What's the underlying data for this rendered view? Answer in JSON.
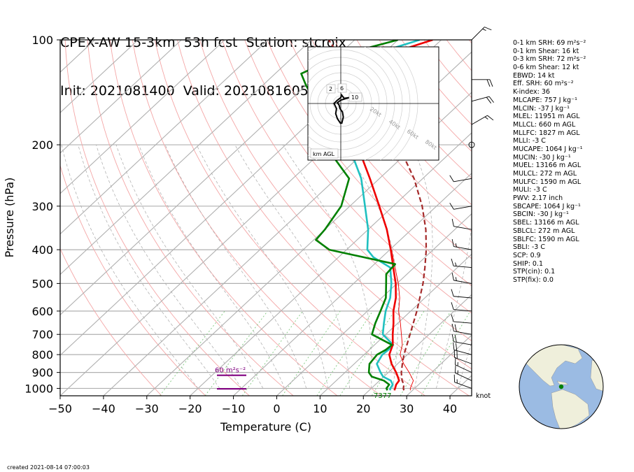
{
  "title": {
    "line1": "CPEX-AW 15-3km  53h fcst  Station: stcroix",
    "line2": "Init: 2021081400  Valid: 202108160500 UTC"
  },
  "stats": [
    "0-1 km SRH: 69 m²s⁻²",
    "0-1 km Shear: 16 kt",
    "0-3 km SRH: 72 m²s⁻²",
    "0-6 km Shear: 12 kt",
    "EBWD: 14 kt",
    "Eff. SRH: 60 m²s⁻²",
    "K-index: 36",
    "MLCAPE: 757 J kg⁻¹",
    "MLCIN: -37 J kg⁻¹",
    "MLEL: 11951 m AGL",
    "MLLCL: 660 m AGL",
    "MLLFC: 1827 m AGL",
    "MLLI: -3 C",
    "MUCAPE: 1064 J kg⁻¹",
    "MUCIN: -30 J kg⁻¹",
    "MUEL: 13166 m AGL",
    "MULCL: 272 m AGL",
    "MULFC: 1590 m AGL",
    "MULI: -3 C",
    "PWV: 2.17 inch",
    "SBCAPE: 1064 J kg⁻¹",
    "SBCIN: -30 J kg⁻¹",
    "SBEL: 13166 m AGL",
    "SBLCL: 272 m AGL",
    "SBLFC: 1590 m AGL",
    "SBLI: -3 C",
    "SCP: 0.9",
    "SHIP: 0.1",
    "STP(cin): 0.1",
    "STP(fix): 0.0"
  ],
  "created": "created 2021-08-14 07:00:03",
  "chart_data": {
    "type": "line",
    "title": "CPEX-AW 15-3km  53h fcst  Station: stcroix",
    "subtitle": "Init: 2021081400  Valid: 202108160500 UTC",
    "xlabel": "Temperature (C)",
    "ylabel": "Pressure (hPa)",
    "xlim": [
      -50,
      45
    ],
    "ylim": [
      1050,
      100
    ],
    "y_scale": "log",
    "skew": true,
    "xticks": [
      -50,
      -40,
      -30,
      -20,
      -10,
      0,
      10,
      20,
      30,
      40
    ],
    "yticks": [
      100,
      200,
      300,
      400,
      500,
      600,
      700,
      800,
      900,
      1000
    ],
    "grid": true,
    "series": [
      {
        "key": "temperature",
        "color": "#ee0000",
        "points": [
          [
            1013,
            25.8
          ],
          [
            1000,
            25.5
          ],
          [
            975,
            24.8
          ],
          [
            950,
            24.5
          ],
          [
            925,
            23.2
          ],
          [
            900,
            21.8
          ],
          [
            850,
            18.6
          ],
          [
            800,
            15.8
          ],
          [
            775,
            15.0
          ],
          [
            750,
            14.2
          ],
          [
            700,
            11.6
          ],
          [
            650,
            9.0
          ],
          [
            600,
            6.0
          ],
          [
            550,
            3.3
          ],
          [
            500,
            -0.3
          ],
          [
            450,
            -4.8
          ],
          [
            400,
            -9.8
          ],
          [
            350,
            -15.7
          ],
          [
            300,
            -23.2
          ],
          [
            250,
            -32.2
          ],
          [
            200,
            -43.5
          ],
          [
            175,
            -50.5
          ],
          [
            150,
            -58.5
          ],
          [
            135,
            -64.5
          ],
          [
            125,
            -66.5
          ],
          [
            115,
            -62.0
          ],
          [
            100,
            -52.0
          ]
        ]
      },
      {
        "key": "virtual-temperature",
        "color": "#ee0000",
        "points": [
          [
            1013,
            29.5
          ],
          [
            1000,
            29.0
          ],
          [
            950,
            27.8
          ],
          [
            900,
            24.8
          ],
          [
            850,
            21.4
          ],
          [
            800,
            18.3
          ],
          [
            750,
            16.4
          ],
          [
            700,
            13.6
          ],
          [
            650,
            10.6
          ],
          [
            600,
            7.2
          ],
          [
            550,
            4.2
          ],
          [
            500,
            0.3
          ],
          [
            450,
            -4.4
          ],
          [
            400,
            -9.6
          ]
        ]
      },
      {
        "key": "dewpoint",
        "color": "#008000",
        "points": [
          [
            1013,
            24.2
          ],
          [
            1000,
            23.5
          ],
          [
            975,
            23.2
          ],
          [
            950,
            21.0
          ],
          [
            925,
            17.2
          ],
          [
            900,
            15.5
          ],
          [
            850,
            13.5
          ],
          [
            800,
            13.0
          ],
          [
            775,
            13.8
          ],
          [
            750,
            14.0
          ],
          [
            700,
            6.8
          ],
          [
            650,
            4.8
          ],
          [
            600,
            3.0
          ],
          [
            550,
            1.0
          ],
          [
            500,
            -2.5
          ],
          [
            470,
            -4.8
          ],
          [
            440,
            -5.2
          ],
          [
            400,
            -24.0
          ],
          [
            375,
            -29.5
          ],
          [
            350,
            -30.0
          ],
          [
            300,
            -32.0
          ],
          [
            250,
            -37.0
          ],
          [
            200,
            -51.0
          ],
          [
            175,
            -58.0
          ],
          [
            150,
            -64.0
          ],
          [
            135,
            -70.0
          ],
          [
            125,
            -74.0
          ],
          [
            110,
            -69.0
          ],
          [
            100,
            -60.0
          ]
        ]
      },
      {
        "key": "wet-bulb",
        "color": "#20c0c0",
        "points": [
          [
            1013,
            24.8
          ],
          [
            1000,
            24.4
          ],
          [
            975,
            24.0
          ],
          [
            950,
            22.6
          ],
          [
            925,
            19.8
          ],
          [
            900,
            18.2
          ],
          [
            850,
            15.2
          ],
          [
            800,
            14.2
          ],
          [
            775,
            14.4
          ],
          [
            750,
            14.3
          ],
          [
            700,
            9.3
          ],
          [
            650,
            6.8
          ],
          [
            600,
            4.2
          ],
          [
            550,
            2.0
          ],
          [
            500,
            -1.3
          ],
          [
            450,
            -5.5
          ],
          [
            420,
            -12.0
          ],
          [
            400,
            -15.2
          ],
          [
            350,
            -20.0
          ],
          [
            300,
            -26.5
          ],
          [
            250,
            -34.2
          ],
          [
            200,
            -45.5
          ],
          [
            175,
            -52.0
          ],
          [
            150,
            -59.5
          ],
          [
            135,
            -65.5
          ],
          [
            125,
            -70.0
          ],
          [
            115,
            -65.5
          ],
          [
            100,
            -55.0
          ]
        ]
      },
      {
        "key": "parcel",
        "color": "#a52a2a",
        "dashed": true,
        "points": [
          [
            1013,
            28.0
          ],
          [
            1000,
            27.4
          ],
          [
            975,
            26.6
          ],
          [
            950,
            25.2
          ],
          [
            925,
            24.1
          ],
          [
            900,
            23.0
          ],
          [
            850,
            21.1
          ],
          [
            800,
            19.2
          ],
          [
            700,
            15.6
          ],
          [
            600,
            11.4
          ],
          [
            500,
            6.0
          ],
          [
            450,
            2.5
          ],
          [
            400,
            -1.6
          ],
          [
            350,
            -6.7
          ],
          [
            300,
            -13.3
          ],
          [
            250,
            -22.0
          ],
          [
            200,
            -34.0
          ],
          [
            175,
            -42.0
          ],
          [
            150,
            -51.5
          ],
          [
            135,
            -58.0
          ],
          [
            125,
            -62.5
          ],
          [
            100,
            -76.0
          ]
        ]
      }
    ],
    "annotations": {
      "lcl_labels": [
        "7377"
      ],
      "srh_label": "60 m²s⁻²",
      "wind_unit": "knot",
      "hodograph": {
        "rings": [
          "20kt",
          "40kt",
          "60kt",
          "80kt"
        ],
        "height_labels": [
          "2",
          "6",
          "10"
        ],
        "label": "km AGL",
        "trace": [
          [
            0,
            -12
          ],
          [
            -2,
            -9
          ],
          [
            -3,
            -6
          ],
          [
            -2.5,
            -3
          ],
          [
            -4,
            0
          ],
          [
            -2,
            2
          ],
          [
            0,
            3.5
          ],
          [
            0.5,
            5
          ],
          [
            2,
            3
          ],
          [
            5,
            3.5
          ],
          [
            0,
            2
          ],
          [
            -2,
            0.5
          ],
          [
            -1,
            -1
          ],
          [
            -0.5,
            -3
          ],
          [
            1,
            -5
          ],
          [
            1.5,
            -8
          ],
          [
            0.5,
            -12
          ]
        ]
      },
      "globe_marker": "St. Croix"
    }
  }
}
